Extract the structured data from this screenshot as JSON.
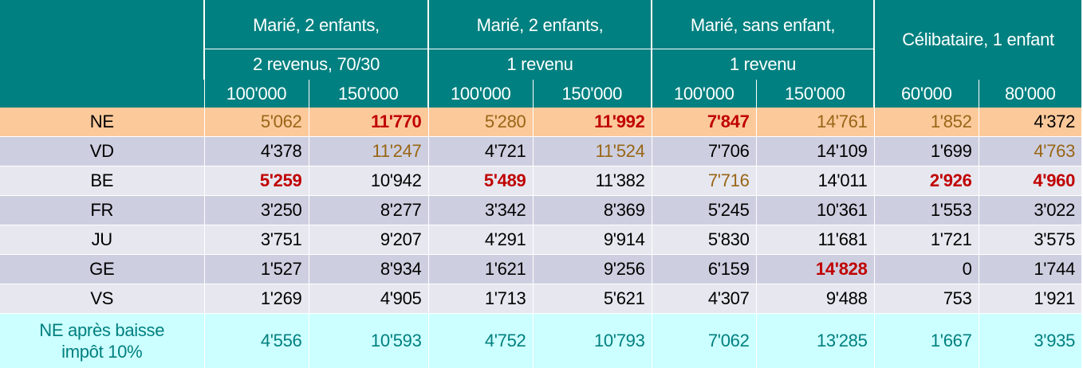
{
  "groups": [
    {
      "line1": "Marié, 2 enfants,",
      "line2": "2 revenus, 70/30"
    },
    {
      "line1": "Marié, 2 enfants,",
      "line2": "1 revenu"
    },
    {
      "line1": "Marié, sans enfant,",
      "line2": "1 revenu"
    },
    {
      "line1": "Célibataire, 1 enfant",
      "line2": ""
    }
  ],
  "incomes": [
    "100'000",
    "150'000",
    "100'000",
    "150'000",
    "100'000",
    "150'000",
    "60'000",
    "80'000"
  ],
  "rows": [
    {
      "label": "NE",
      "values": [
        "5'062",
        "11'770",
        "5'280",
        "11'992",
        "7'847",
        "14'761",
        "1'852",
        "4'372"
      ]
    },
    {
      "label": "VD",
      "values": [
        "4'378",
        "11'247",
        "4'721",
        "11'524",
        "7'706",
        "14'109",
        "1'699",
        "4'763"
      ]
    },
    {
      "label": "BE",
      "values": [
        "5'259",
        "10'942",
        "5'489",
        "11'382",
        "7'716",
        "14'011",
        "2'926",
        "4'960"
      ]
    },
    {
      "label": "FR",
      "values": [
        "3'250",
        "8'277",
        "3'342",
        "8'369",
        "5'245",
        "10'361",
        "1'553",
        "3'022"
      ]
    },
    {
      "label": "JU",
      "values": [
        "3'751",
        "9'207",
        "4'291",
        "9'914",
        "5'830",
        "11'681",
        "1'721",
        "3'575"
      ]
    },
    {
      "label": "GE",
      "values": [
        "1'527",
        "8'934",
        "1'621",
        "9'256",
        "6'159",
        "14'828",
        "0",
        "1'744"
      ]
    },
    {
      "label": "VS",
      "values": [
        "1'269",
        "4'905",
        "1'713",
        "5'621",
        "4'307",
        "9'488",
        "753",
        "1'921"
      ]
    }
  ],
  "footer_row": {
    "label_line1": "NE après baisse",
    "label_line2": "impôt 10%",
    "values": [
      "4'556",
      "10'593",
      "4'752",
      "10'793",
      "7'062",
      "13'285",
      "1'667",
      "3'935"
    ]
  },
  "colors": {
    "header_teal": "#008080",
    "ne_row": "#fcc99b",
    "row_dark": "#cdcfe0",
    "row_light": "#e6e7ef",
    "footer_row": "#ccffff",
    "highest_red": "#c00000",
    "second_brown": "#996515"
  }
}
